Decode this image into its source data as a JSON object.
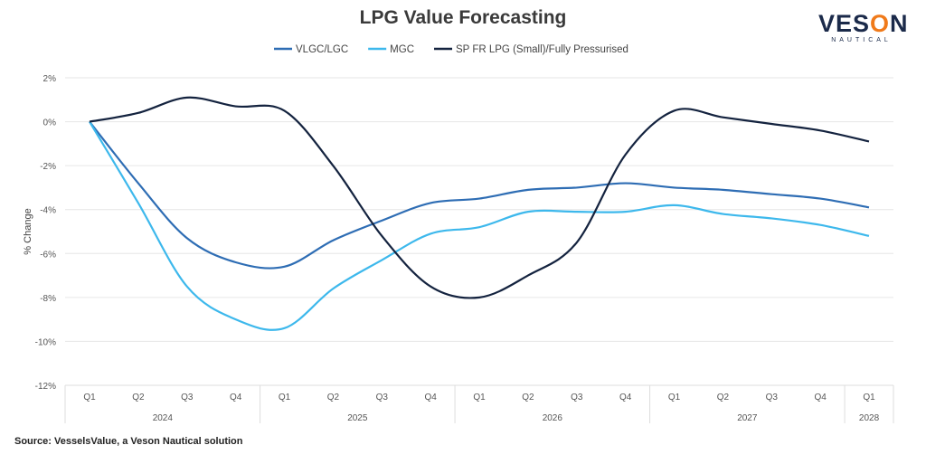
{
  "chart_data": {
    "type": "line",
    "title": "LPG Value Forecasting",
    "ylabel": "% Change",
    "xlabel": "",
    "ylim": [
      -12,
      2
    ],
    "yticks": [
      "2%",
      "0%",
      "-2%",
      "-4%",
      "-6%",
      "-8%",
      "-10%",
      "-12%"
    ],
    "ytick_values": [
      2,
      0,
      -2,
      -4,
      -6,
      -8,
      -10,
      -12
    ],
    "grid": true,
    "legend": "top",
    "categories": [
      "Q1",
      "Q2",
      "Q3",
      "Q4",
      "Q1",
      "Q2",
      "Q3",
      "Q4",
      "Q1",
      "Q2",
      "Q3",
      "Q4",
      "Q1",
      "Q2",
      "Q3",
      "Q4",
      "Q1"
    ],
    "year_groups": [
      {
        "label": "2024",
        "count": 4
      },
      {
        "label": "2025",
        "count": 4
      },
      {
        "label": "2026",
        "count": 4
      },
      {
        "label": "2027",
        "count": 4
      },
      {
        "label": "2028",
        "count": 1
      }
    ],
    "series": [
      {
        "name": "VLGC/LGC",
        "color": "#2e6db4",
        "values": [
          0,
          -2.8,
          -5.3,
          -6.4,
          -6.6,
          -5.4,
          -4.5,
          -3.7,
          -3.5,
          -3.1,
          -3.0,
          -2.8,
          -3.0,
          -3.1,
          -3.3,
          -3.5,
          -3.9
        ]
      },
      {
        "name": "MGC",
        "color": "#3db8ec",
        "values": [
          0,
          -3.7,
          -7.5,
          -9.0,
          -9.4,
          -7.6,
          -6.3,
          -5.1,
          -4.8,
          -4.1,
          -4.1,
          -4.1,
          -3.8,
          -4.2,
          -4.4,
          -4.7,
          -5.2
        ]
      },
      {
        "name": "SP FR LPG (Small)/Fully Pressurised",
        "color": "#14233f",
        "values": [
          0,
          0.4,
          1.1,
          0.7,
          0.5,
          -2.0,
          -5.2,
          -7.5,
          -8.0,
          -7.0,
          -5.5,
          -1.5,
          0.5,
          0.2,
          -0.1,
          -0.4,
          -0.9
        ]
      }
    ]
  },
  "logo": {
    "main": "VESON",
    "sub": "NAUTICAL"
  },
  "source": "Source: VesselsValue, a Veson Nautical solution"
}
